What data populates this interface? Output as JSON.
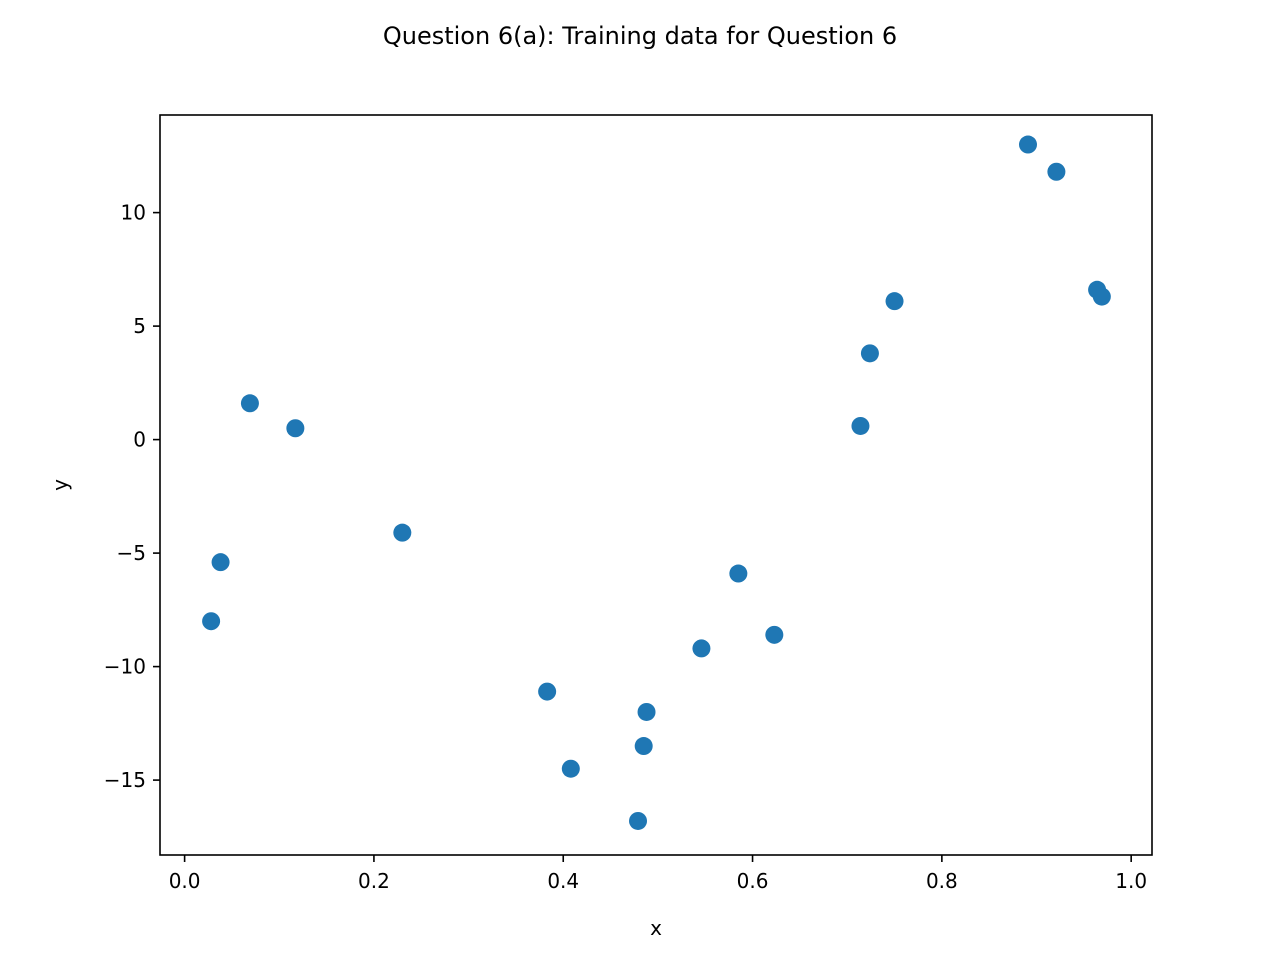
{
  "chart_data": {
    "type": "scatter",
    "title": "Question 6(a): Training data for Question 6",
    "xlabel": "x",
    "ylabel": "y",
    "xlim": [
      -0.026,
      1.022
    ],
    "ylim": [
      -18.3,
      14.3
    ],
    "xticks": [
      0.0,
      0.2,
      0.4,
      0.6,
      0.8,
      1.0
    ],
    "xtick_labels": [
      "0.0",
      "0.2",
      "0.4",
      "0.6",
      "0.8",
      "1.0"
    ],
    "yticks": [
      -15,
      -10,
      -5,
      0,
      5,
      10
    ],
    "ytick_labels": [
      "−15",
      "−10",
      "−5",
      "0",
      "5",
      "10"
    ],
    "grid": false,
    "legend": "none",
    "marker_color": "#1f77b4",
    "points": [
      {
        "x": 0.028,
        "y": -8.0
      },
      {
        "x": 0.038,
        "y": -5.4
      },
      {
        "x": 0.069,
        "y": 1.6
      },
      {
        "x": 0.117,
        "y": 0.5
      },
      {
        "x": 0.23,
        "y": -4.1
      },
      {
        "x": 0.383,
        "y": -11.1
      },
      {
        "x": 0.408,
        "y": -14.5
      },
      {
        "x": 0.479,
        "y": -16.8
      },
      {
        "x": 0.485,
        "y": -13.5
      },
      {
        "x": 0.488,
        "y": -12.0
      },
      {
        "x": 0.546,
        "y": -9.2
      },
      {
        "x": 0.585,
        "y": -5.9
      },
      {
        "x": 0.623,
        "y": -8.6
      },
      {
        "x": 0.714,
        "y": 0.6
      },
      {
        "x": 0.724,
        "y": 3.8
      },
      {
        "x": 0.75,
        "y": 6.1
      },
      {
        "x": 0.891,
        "y": 13.0
      },
      {
        "x": 0.921,
        "y": 11.8
      },
      {
        "x": 0.964,
        "y": 6.6
      },
      {
        "x": 0.969,
        "y": 6.3
      }
    ]
  }
}
